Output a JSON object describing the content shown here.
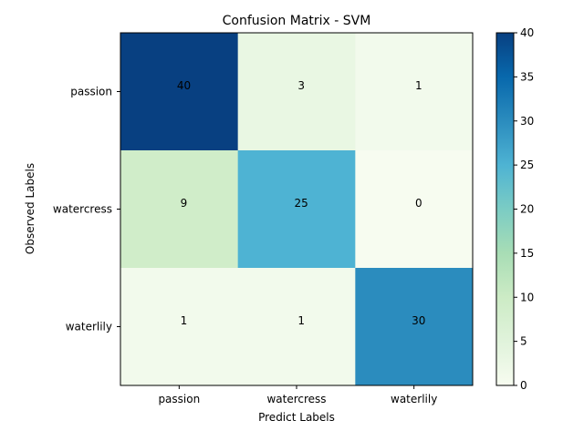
{
  "chart_data": {
    "type": "heatmap",
    "title": "Confusion Matrix - SVM",
    "xlabel": "Predict Labels",
    "ylabel": "Observed Labels",
    "x_categories": [
      "passion",
      "watercress",
      "waterlily"
    ],
    "y_categories": [
      "passion",
      "watercress",
      "waterlily"
    ],
    "values": [
      [
        40,
        3,
        1
      ],
      [
        9,
        25,
        0
      ],
      [
        1,
        1,
        30
      ]
    ],
    "colormap": "GnBu",
    "vmin": 0,
    "vmax": 40,
    "colorbar_ticks": [
      0,
      5,
      10,
      15,
      20,
      25,
      30,
      35,
      40
    ],
    "colors": {
      "low": "#f7fcf0",
      "high": "#084081"
    }
  }
}
